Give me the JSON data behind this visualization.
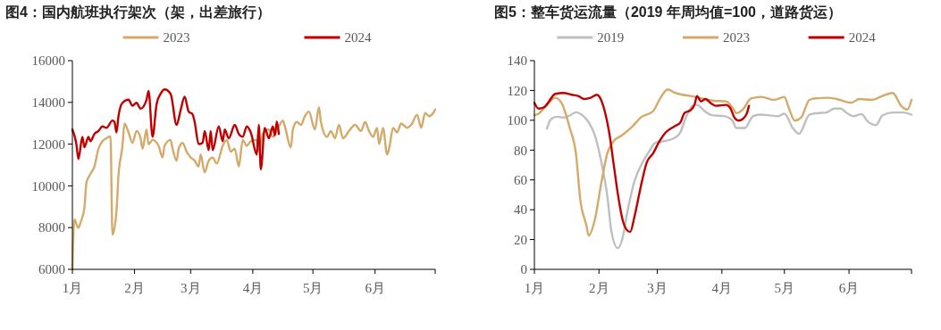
{
  "chart_data": [
    {
      "type": "line",
      "title": "图4：国内航班执行架次（架，出差旅行）",
      "legend": "top",
      "xlim": [
        "--01-01",
        "--07-01"
      ],
      "xticks": [
        {
          "value": "--01-01",
          "label": "1月"
        },
        {
          "value": "--02-01",
          "label": "2月"
        },
        {
          "value": "--03-01",
          "label": "3月"
        },
        {
          "value": "--04-01",
          "label": "4月"
        },
        {
          "value": "--05-01",
          "label": "5月"
        },
        {
          "value": "--06-01",
          "label": "6月"
        },
        {
          "value": "--07-01",
          "label": null
        }
      ],
      "ylim": [
        6000,
        16000
      ],
      "yticks": [
        6000,
        8000,
        10000,
        12000,
        14000,
        16000
      ],
      "series": [
        {
          "name": "2023",
          "color": "#d4aa6b",
          "x": [
            "--01-01",
            "--01-02",
            "--01-04",
            "--01-05",
            "--01-07",
            "--01-08",
            "--01-10",
            "--01-12",
            "--01-14",
            "--01-16",
            "--01-18",
            "--01-20",
            "--01-21",
            "--01-23",
            "--01-24",
            "--01-26",
            "--01-27",
            "--01-29",
            "--01-31",
            "--02-02",
            "--02-04",
            "--02-05",
            "--02-07",
            "--02-08",
            "--02-10",
            "--02-13",
            "--02-15",
            "--02-16",
            "--02-19",
            "--02-20",
            "--02-22",
            "--02-23",
            "--02-25",
            "--02-27",
            "--03-01",
            "--03-03",
            "--03-05",
            "--03-06",
            "--03-08",
            "--03-10",
            "--03-12",
            "--03-14",
            "--03-17",
            "--03-19",
            "--03-21",
            "--03-23",
            "--03-25",
            "--03-27",
            "--03-29",
            "--03-31",
            "--04-03",
            "--04-04",
            "--04-06",
            "--04-09",
            "--04-11",
            "--04-14",
            "--04-16",
            "--04-17",
            "--04-20",
            "--04-21",
            "--04-23",
            "--04-25",
            "--04-27",
            "--04-29",
            "--05-02",
            "--05-04",
            "--05-05",
            "--05-08",
            "--05-10",
            "--05-12",
            "--05-14",
            "--05-16",
            "--05-19",
            "--05-22",
            "--05-25",
            "--05-27",
            "--05-29",
            "--05-31",
            "--06-02",
            "--06-03",
            "--06-05",
            "--06-07",
            "--06-08",
            "--06-10",
            "--06-12",
            "--06-14",
            "--06-17",
            "--06-19",
            "--06-22",
            "--06-24",
            "--06-26",
            "--06-28",
            "--06-30",
            "--07-01"
          ],
          "values": [
            6000,
            8400,
            7980,
            8230,
            8940,
            10150,
            10570,
            10930,
            11780,
            12140,
            12280,
            12380,
            7660,
            8800,
            10500,
            11920,
            12990,
            12560,
            12060,
            12630,
            12280,
            11780,
            12700,
            11990,
            12200,
            11920,
            11360,
            11920,
            12200,
            11780,
            11210,
            11780,
            12060,
            11640,
            11360,
            11210,
            10930,
            11500,
            10640,
            11210,
            11360,
            11070,
            11920,
            12200,
            11640,
            11780,
            10930,
            12200,
            11920,
            12140,
            12200,
            11640,
            12490,
            12700,
            12350,
            12850,
            13130,
            12850,
            11850,
            12700,
            13060,
            12920,
            13340,
            13560,
            12700,
            13770,
            13060,
            12350,
            12630,
            12280,
            12920,
            12280,
            12630,
            12920,
            12630,
            13060,
            12630,
            12350,
            12780,
            12000,
            12780,
            11500,
            11780,
            12780,
            12560,
            12990,
            12780,
            12920,
            13410,
            12780,
            13490,
            13340,
            13490,
            13660
          ]
        },
        {
          "name": "2024",
          "color": "#c00000",
          "x": [
            "--01-01",
            "--01-03",
            "--01-04",
            "--01-06",
            "--01-07",
            "--01-09",
            "--01-10",
            "--01-12",
            "--01-14",
            "--01-16",
            "--01-18",
            "--01-21",
            "--01-22",
            "--01-23",
            "--01-24",
            "--01-26",
            "--01-29",
            "--01-31",
            "--02-02",
            "--02-04",
            "--02-07",
            "--02-08",
            "--02-10",
            "--02-12",
            "--02-14",
            "--02-16",
            "--02-19",
            "--02-22",
            "--02-24",
            "--02-26",
            "--02-28",
            "--03-02",
            "--03-03",
            "--03-05",
            "--03-07",
            "--03-08",
            "--03-10",
            "--03-11",
            "--03-12",
            "--03-15",
            "--03-17",
            "--03-18",
            "--03-20",
            "--03-23",
            "--03-25",
            "--03-27",
            "--03-29",
            "--03-31",
            "--04-03",
            "--04-04",
            "--04-05",
            "--04-07",
            "--04-09",
            "--04-11",
            "--04-12",
            "--04-13",
            "--04-14"
          ],
          "values": [
            12700,
            12000,
            11290,
            12350,
            11850,
            12350,
            12140,
            12490,
            12630,
            12850,
            12780,
            13130,
            13060,
            12560,
            13340,
            13980,
            14130,
            13840,
            13980,
            13700,
            14130,
            14550,
            12350,
            13910,
            14410,
            14620,
            14410,
            12920,
            13630,
            14270,
            13560,
            13420,
            13060,
            12000,
            12070,
            12630,
            11710,
            12630,
            11710,
            12850,
            12140,
            12700,
            12280,
            12920,
            12490,
            12350,
            12850,
            12560,
            11500,
            12920,
            10790,
            12780,
            12280,
            12850,
            12420,
            13090,
            12490
          ]
        }
      ]
    },
    {
      "type": "line",
      "title": "图5：整车货运流量（2019 年周均值=100，道路货运）",
      "legend": "top",
      "xlim": [
        "--01-01",
        "--07-01"
      ],
      "xticks": [
        {
          "value": "--01-01",
          "label": "1月"
        },
        {
          "value": "--02-01",
          "label": "2月"
        },
        {
          "value": "--03-01",
          "label": "3月"
        },
        {
          "value": "--04-01",
          "label": "4月"
        },
        {
          "value": "--05-01",
          "label": "5月"
        },
        {
          "value": "--06-01",
          "label": "6月"
        },
        {
          "value": "--07-01",
          "label": null
        }
      ],
      "ylim": [
        0,
        140
      ],
      "yticks": [
        0,
        20,
        40,
        60,
        80,
        100,
        120,
        140
      ],
      "series": [
        {
          "name": "2019",
          "color": "#bfbfbf",
          "x": [
            "--01-07",
            "--01-09",
            "--01-12",
            "--01-15",
            "--01-18",
            "--01-21",
            "--01-24",
            "--01-27",
            "--01-30",
            "--02-02",
            "--02-05",
            "--02-07",
            "--02-10",
            "--02-12",
            "--02-15",
            "--02-18",
            "--02-22",
            "--02-25",
            "--02-28",
            "--03-04",
            "--03-09",
            "--03-12",
            "--03-15",
            "--03-18",
            "--03-20",
            "--03-24",
            "--03-27",
            "--04-02",
            "--04-06",
            "--04-08",
            "--04-12",
            "--04-16",
            "--04-19",
            "--04-23",
            "--04-28",
            "--05-01",
            "--05-05",
            "--05-08",
            "--05-13",
            "--05-17",
            "--05-21",
            "--05-25",
            "--05-28",
            "--05-31",
            "--06-03",
            "--06-07",
            "--06-10",
            "--06-14",
            "--06-17",
            "--06-22",
            "--06-27",
            "--07-01"
          ],
          "values": [
            94.4,
            100.8,
            102.4,
            101.8,
            103.2,
            105.4,
            103.4,
            98.8,
            89.9,
            73,
            49.1,
            25.2,
            14.3,
            19.3,
            41.2,
            59,
            72,
            78.9,
            84.9,
            85.9,
            87.9,
            91.8,
            102.8,
            109.7,
            110.3,
            105.8,
            103.4,
            102.8,
            99.8,
            94.8,
            94.8,
            102.8,
            103.8,
            103.4,
            102.8,
            104.4,
            94.8,
            90.9,
            103.8,
            104.8,
            105.2,
            107.8,
            107.8,
            104.8,
            102.8,
            104.2,
            99.2,
            96.8,
            103.2,
            105.2,
            105.2,
            103.8
          ]
        },
        {
          "name": "2023",
          "color": "#d4aa6b",
          "x": [
            "--01-01",
            "--01-03",
            "--01-07",
            "--01-11",
            "--01-14",
            "--01-18",
            "--01-21",
            "--01-23",
            "--01-26",
            "--01-27",
            "--01-30",
            "--02-02",
            "--02-05",
            "--02-08",
            "--02-12",
            "--02-17",
            "--02-21",
            "--02-27",
            "--03-02",
            "--03-06",
            "--03-09",
            "--03-13",
            "--03-17",
            "--03-22",
            "--03-28",
            "--04-03",
            "--04-06",
            "--04-08",
            "--04-11",
            "--04-15",
            "--04-20",
            "--04-26",
            "--05-01",
            "--05-03",
            "--05-06",
            "--05-09",
            "--05-13",
            "--05-16",
            "--05-22",
            "--05-26",
            "--06-02",
            "--06-06",
            "--06-12",
            "--06-17",
            "--06-22",
            "--06-26",
            "--06-29",
            "--07-01"
          ],
          "values": [
            103.4,
            104.4,
            110.3,
            115.1,
            111.7,
            94.8,
            76.9,
            47.1,
            29.2,
            22.7,
            33.2,
            57.1,
            77.9,
            85.9,
            89.9,
            95.8,
            101.8,
            106.2,
            113.7,
            120.7,
            118.7,
            117.1,
            116.3,
            114.7,
            113.1,
            112.7,
            108.7,
            104.8,
            107.2,
            114.7,
            115.7,
            113.7,
            115.7,
            108.7,
            99.8,
            101.8,
            113.7,
            114.7,
            115.1,
            114.3,
            111.7,
            114.3,
            113.7,
            116.3,
            118.3,
            109.7,
            107.2,
            113.7
          ]
        },
        {
          "name": "2024",
          "color": "#c00000",
          "x": [
            "--01-01",
            "--01-03",
            "--01-06",
            "--01-08",
            "--01-11",
            "--01-15",
            "--01-19",
            "--01-22",
            "--01-25",
            "--01-28",
            "--01-31",
            "--02-02",
            "--02-04",
            "--02-06",
            "--02-08",
            "--02-10",
            "--02-12",
            "--02-15",
            "--02-16",
            "--02-18",
            "--02-21",
            "--02-24",
            "--02-27",
            "--03-02",
            "--03-05",
            "--03-09",
            "--03-12",
            "--03-14",
            "--03-17",
            "--03-19",
            "--03-20",
            "--03-22",
            "--03-24",
            "--03-27",
            "--03-29",
            "--04-03",
            "--04-05",
            "--04-07",
            "--04-09",
            "--04-11",
            "--04-13",
            "--04-14"
          ],
          "values": [
            111.7,
            107.8,
            109.1,
            112.7,
            117.7,
            118.3,
            117.1,
            116.3,
            114.3,
            115.1,
            117.1,
            113.7,
            104.8,
            90.9,
            71,
            51.1,
            35.2,
            25.6,
            25.2,
            35.2,
            55.1,
            72,
            77.9,
            85.9,
            91.8,
            95.8,
            98.4,
            104.8,
            106.8,
            111.1,
            116.3,
            112.7,
            114.3,
            111.1,
            109.7,
            110.3,
            108.3,
            101.8,
            99.8,
            100.8,
            104.8,
            109.7
          ]
        }
      ]
    }
  ]
}
